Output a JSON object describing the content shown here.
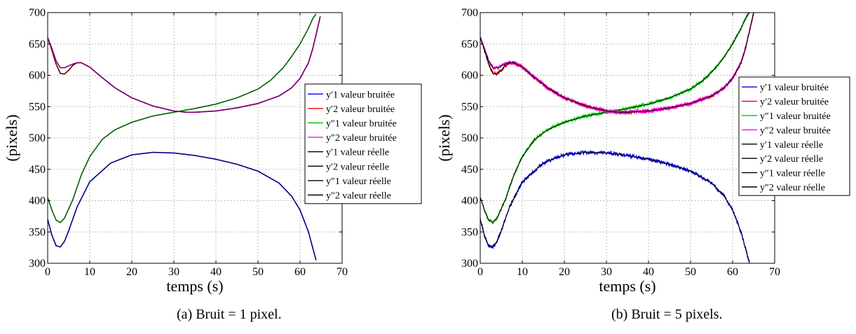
{
  "chart_data": [
    {
      "type": "line",
      "caption": "(a)  Bruit = 1 pixel.",
      "xlabel": "temps (s)",
      "ylabel": "(pixels)",
      "xlim": [
        0,
        70
      ],
      "ylim": [
        300,
        700
      ],
      "xticks": [
        0,
        10,
        20,
        30,
        40,
        50,
        60,
        70
      ],
      "yticks": [
        300,
        350,
        400,
        450,
        500,
        550,
        600,
        650,
        700
      ],
      "grid": true,
      "noise": 1,
      "legend_position": "right",
      "legend_entries": [
        {
          "label": "y′1 valeur bruitée",
          "color": "#0000ff"
        },
        {
          "label": "y′2 valeur bruitée",
          "color": "#ff0000"
        },
        {
          "label": "y″1 valeur bruitée",
          "color": "#00cc00"
        },
        {
          "label": "y″2 valeur bruitée",
          "color": "#ff00ff"
        },
        {
          "label": "y′1 valeur réelle",
          "color": "#000000"
        },
        {
          "label": "y′2 valeur réelle",
          "color": "#000000"
        },
        {
          "label": "y″1 valeur réelle",
          "color": "#000000"
        },
        {
          "label": "y″2 valeur réelle",
          "color": "#000000"
        }
      ],
      "series": [
        {
          "key": "y1p",
          "color": "#000080",
          "x": [
            0,
            1,
            2,
            3,
            4,
            5,
            7,
            10,
            15,
            20,
            25,
            30,
            35,
            40,
            45,
            50,
            55,
            58,
            60,
            62,
            63,
            64
          ],
          "y": [
            370,
            345,
            328,
            326,
            335,
            352,
            390,
            430,
            460,
            473,
            477,
            476,
            472,
            466,
            458,
            447,
            428,
            407,
            385,
            350,
            325,
            300
          ]
        },
        {
          "key": "y2p",
          "color": "#600000",
          "x": [
            0,
            1,
            2,
            3,
            4,
            5,
            6,
            7,
            8,
            10,
            13,
            16,
            20,
            25,
            30,
            33,
            35,
            40,
            45,
            50,
            55,
            58,
            60,
            62,
            63,
            64,
            65
          ],
          "y": [
            660,
            640,
            618,
            603,
            602,
            608,
            616,
            620,
            620,
            613,
            596,
            580,
            564,
            551,
            543,
            541,
            541,
            543,
            548,
            555,
            567,
            580,
            595,
            620,
            642,
            670,
            700
          ]
        },
        {
          "key": "y1pp",
          "color": "#006000",
          "x": [
            0,
            1,
            2,
            3,
            4,
            6,
            8,
            10,
            13,
            16,
            20,
            25,
            30,
            35,
            40,
            45,
            50,
            53,
            56,
            58,
            60,
            62,
            63,
            64
          ],
          "y": [
            405,
            385,
            369,
            365,
            372,
            402,
            441,
            470,
            498,
            513,
            525,
            535,
            541,
            547,
            554,
            564,
            578,
            592,
            612,
            630,
            650,
            675,
            690,
            700
          ]
        },
        {
          "key": "y2pp",
          "color": "#800080",
          "x": [
            0,
            1,
            2,
            3,
            4,
            5,
            6,
            7,
            8,
            10,
            13,
            16,
            20,
            25,
            30,
            33,
            35,
            40,
            45,
            50,
            55,
            58,
            60,
            62,
            63,
            64,
            65
          ],
          "y": [
            660,
            643,
            623,
            612,
            612,
            615,
            618,
            620,
            620,
            613,
            596,
            580,
            564,
            551,
            543,
            541,
            541,
            543,
            548,
            555,
            567,
            580,
            595,
            620,
            642,
            670,
            700
          ]
        }
      ]
    },
    {
      "type": "line",
      "caption": "(b)  Bruit = 5 pixels.",
      "xlabel": "temps (s)",
      "ylabel": "(pixels)",
      "xlim": [
        0,
        70
      ],
      "ylim": [
        300,
        700
      ],
      "xticks": [
        0,
        10,
        20,
        30,
        40,
        50,
        60,
        70
      ],
      "yticks": [
        300,
        350,
        400,
        450,
        500,
        550,
        600,
        650,
        700
      ],
      "grid": true,
      "noise": 5,
      "legend_position": "right",
      "legend_entries": [
        {
          "label": "y′1 valeur bruitée",
          "color": "#0000ff"
        },
        {
          "label": "y′2 valeur bruitée",
          "color": "#ff0000"
        },
        {
          "label": "y″1 valeur bruitée",
          "color": "#00dd00"
        },
        {
          "label": "y″2 valeur bruitée",
          "color": "#ff00ff"
        },
        {
          "label": "y′1 valeur réelle",
          "color": "#000000"
        },
        {
          "label": "y′2 valeur réelle",
          "color": "#000000"
        },
        {
          "label": "y″1 valeur réelle",
          "color": "#000000"
        },
        {
          "label": "y″2 valeur réelle",
          "color": "#000000"
        }
      ],
      "series": [
        {
          "key": "y1p",
          "color": "#0000ff",
          "x": [
            0,
            1,
            2,
            3,
            4,
            5,
            7,
            10,
            15,
            20,
            25,
            30,
            35,
            40,
            45,
            50,
            55,
            58,
            60,
            62,
            63,
            64
          ],
          "y": [
            370,
            345,
            328,
            326,
            335,
            352,
            390,
            430,
            460,
            473,
            477,
            476,
            472,
            466,
            458,
            447,
            428,
            407,
            385,
            350,
            325,
            300
          ]
        },
        {
          "key": "y2p",
          "color": "#ff0000",
          "x": [
            0,
            1,
            2,
            3,
            4,
            5,
            6,
            7,
            8,
            10,
            13,
            16,
            20,
            25,
            30,
            33,
            35,
            40,
            45,
            50,
            55,
            58,
            60,
            62,
            63,
            64,
            65
          ],
          "y": [
            660,
            640,
            618,
            603,
            602,
            608,
            616,
            620,
            620,
            613,
            596,
            580,
            564,
            551,
            543,
            541,
            541,
            543,
            548,
            555,
            567,
            580,
            595,
            620,
            642,
            670,
            700
          ]
        },
        {
          "key": "y1pp",
          "color": "#00dd00",
          "x": [
            0,
            1,
            2,
            3,
            4,
            6,
            8,
            10,
            13,
            16,
            20,
            25,
            30,
            35,
            40,
            45,
            50,
            53,
            56,
            58,
            60,
            62,
            63,
            64
          ],
          "y": [
            405,
            385,
            369,
            365,
            372,
            402,
            441,
            470,
            498,
            513,
            525,
            535,
            541,
            547,
            554,
            564,
            578,
            592,
            612,
            630,
            650,
            675,
            690,
            700
          ]
        },
        {
          "key": "y2pp",
          "color": "#ff00ff",
          "x": [
            0,
            1,
            2,
            3,
            4,
            5,
            6,
            7,
            8,
            10,
            13,
            16,
            20,
            25,
            30,
            33,
            35,
            40,
            45,
            50,
            55,
            58,
            60,
            62,
            63,
            64,
            65
          ],
          "y": [
            660,
            643,
            623,
            612,
            612,
            615,
            618,
            620,
            620,
            613,
            596,
            580,
            564,
            551,
            543,
            541,
            541,
            543,
            548,
            555,
            567,
            580,
            595,
            620,
            642,
            670,
            700
          ]
        }
      ]
    }
  ]
}
